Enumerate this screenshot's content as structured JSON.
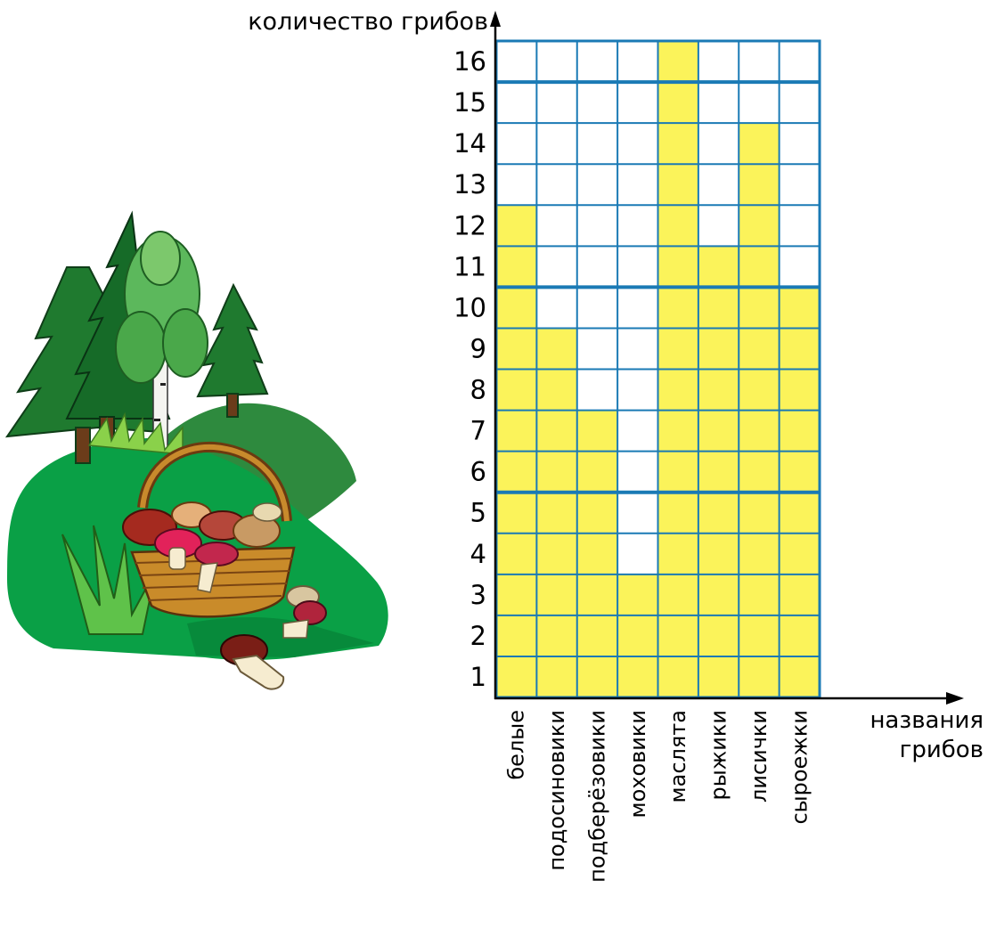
{
  "chart_data": {
    "type": "bar",
    "ylabel": "количество грибов",
    "xlabel_lines": [
      "названия",
      "грибов"
    ],
    "categories": [
      "белые",
      "подосиновики",
      "подберёзовики",
      "моховики",
      "маслята",
      "рыжики",
      "лисички",
      "сыроежки"
    ],
    "values": [
      12,
      9,
      7,
      3,
      16,
      11,
      14,
      10
    ],
    "ylim": [
      0,
      16
    ],
    "y_ticks": [
      1,
      2,
      3,
      4,
      5,
      6,
      7,
      8,
      9,
      10,
      11,
      12,
      13,
      14,
      15,
      16
    ],
    "grid": true,
    "bar_color": "#fbf35a",
    "grid_color": "#1a7ab5"
  },
  "illustration": {
    "subject": "forest clearing with basket of mushrooms",
    "icons": [
      "spruce-tree-icon",
      "birch-tree-icon",
      "basket-icon",
      "mushroom-icon",
      "grass-icon"
    ]
  }
}
